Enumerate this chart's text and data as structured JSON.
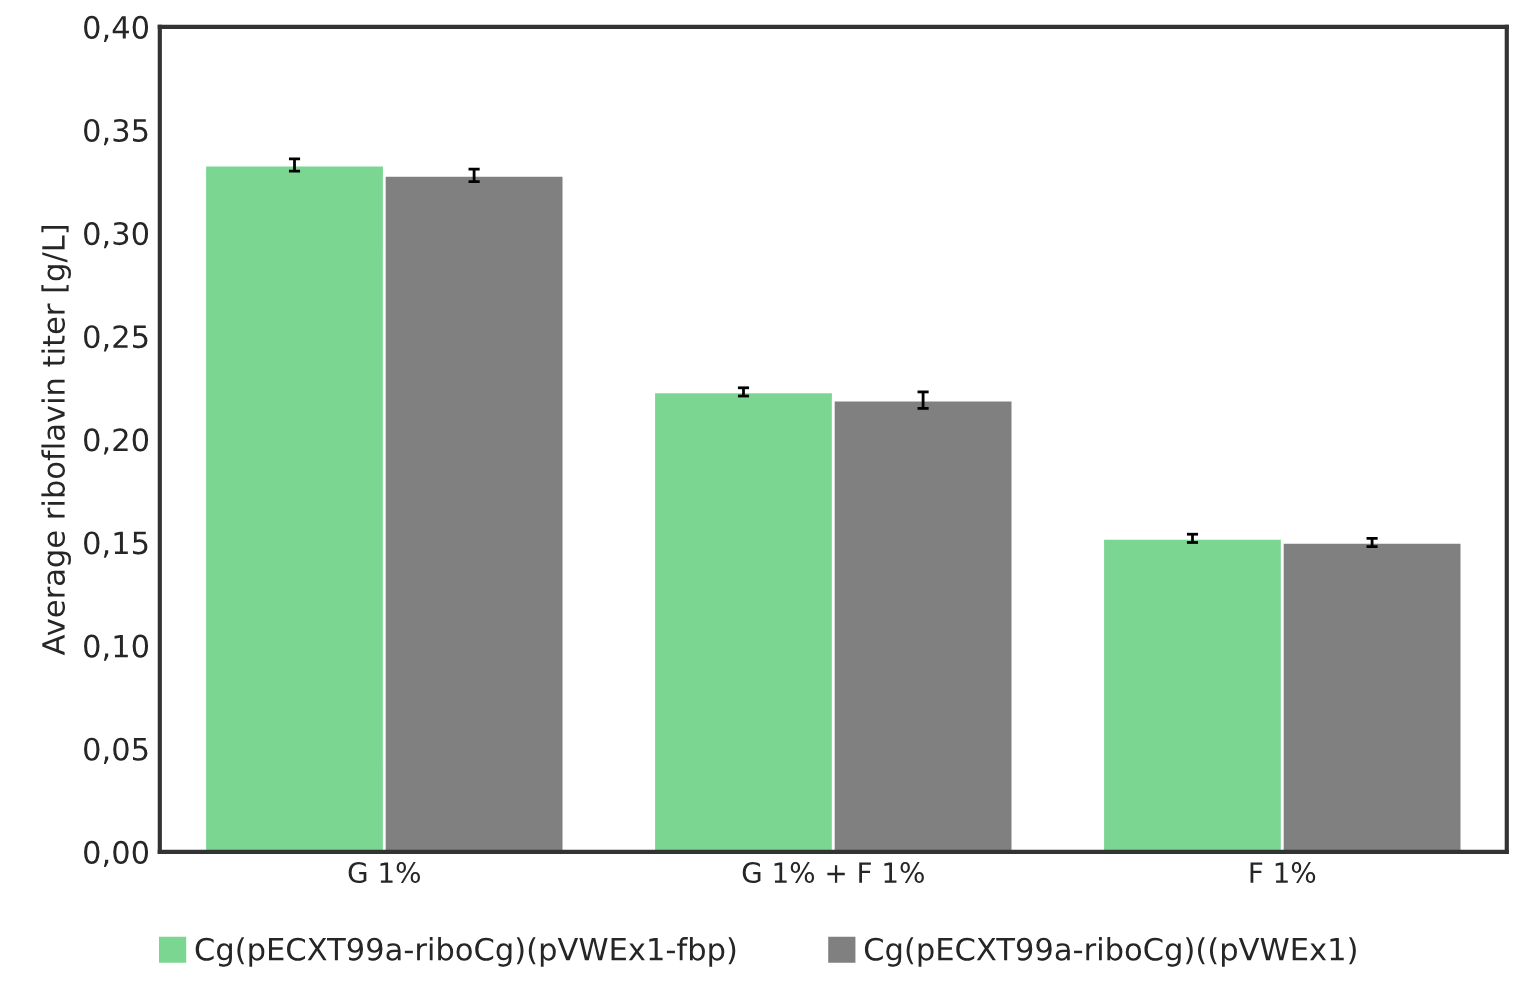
{
  "chart_data": {
    "type": "bar",
    "ylabel": "Average riboflavin titer [g/L]",
    "categories": [
      "G 1%",
      "G 1% + F 1%",
      "F 1%"
    ],
    "series": [
      {
        "name": "Cg(pECXT99a-riboCg)(pVWEx1-fbp)",
        "color": "#7bd692",
        "values": [
          0.333,
          0.223,
          0.152
        ],
        "errors": [
          0.003,
          0.002,
          0.002
        ]
      },
      {
        "name": "Cg(pECXT99a-riboCg)((pVWEx1)",
        "color": "#808080",
        "values": [
          0.328,
          0.219,
          0.15
        ],
        "errors": [
          0.003,
          0.004,
          0.002
        ]
      }
    ],
    "ylim": [
      0,
      0.4
    ],
    "yticks": [
      {
        "value": 0,
        "label": "0,00"
      },
      {
        "value": 0.05,
        "label": "0,05"
      },
      {
        "value": 0.1,
        "label": "0,10"
      },
      {
        "value": 0.15,
        "label": "0,15"
      },
      {
        "value": 0.2,
        "label": "0,20"
      },
      {
        "value": 0.25,
        "label": "0,25"
      },
      {
        "value": 0.3,
        "label": "0,30"
      },
      {
        "value": 0.35,
        "label": "0,35"
      },
      {
        "value": 0.4,
        "label": "0,40"
      }
    ],
    "grid": false,
    "legend": "bottom"
  }
}
